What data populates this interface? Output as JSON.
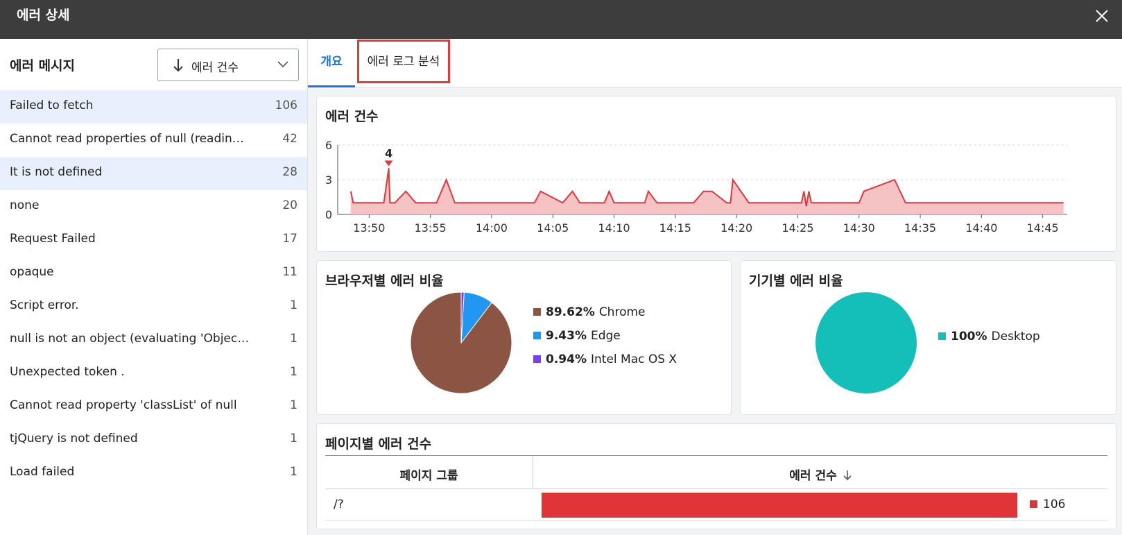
{
  "window": {
    "title": "에러 상세",
    "close_icon": "close-icon"
  },
  "left_panel": {
    "heading": "에러 메시지",
    "sort": {
      "label": "에러 건수",
      "icon": "arrow-down-icon"
    },
    "items": [
      {
        "text": "Failed to fetch",
        "count": "106",
        "selected": true
      },
      {
        "text": "Cannot read properties of null (readin…",
        "count": "42",
        "selected": false
      },
      {
        "text": "It is not defined",
        "count": "28",
        "selected": true
      },
      {
        "text": "none",
        "count": "20",
        "selected": false
      },
      {
        "text": "Request Failed",
        "count": "17",
        "selected": false
      },
      {
        "text": "opaque",
        "count": "11",
        "selected": false
      },
      {
        "text": "Script error.",
        "count": "1",
        "selected": false
      },
      {
        "text": "null is not an object (evaluating 'Objec…",
        "count": "1",
        "selected": false
      },
      {
        "text": "Unexpected token .",
        "count": "1",
        "selected": false
      },
      {
        "text": "Cannot read property 'classList' of null",
        "count": "1",
        "selected": false
      },
      {
        "text": "tjQuery is not defined",
        "count": "1",
        "selected": false
      },
      {
        "text": "Load failed",
        "count": "1",
        "selected": false
      }
    ]
  },
  "tabs": [
    {
      "label": "개요",
      "active": true
    },
    {
      "label": "에러 로그 분석",
      "active": false,
      "highlighted": true
    }
  ],
  "error_count_card": {
    "title": "에러 건수",
    "chart_data": {
      "type": "area",
      "x_ticks": [
        "13:50",
        "13:55",
        "14:00",
        "14:05",
        "14:10",
        "14:15",
        "14:20",
        "14:25",
        "14:30",
        "14:35",
        "14:40",
        "14:45"
      ],
      "y_ticks": [
        "0",
        "3",
        "6"
      ],
      "ylim": [
        0,
        6
      ],
      "xlim": [
        "13:48",
        "14:47"
      ],
      "peak_label": "4",
      "color": "#e0373c",
      "fill": "#f5c3c4",
      "points": [
        [
          "13:48.5",
          2
        ],
        [
          "13:48.7",
          1
        ],
        [
          "13:51.2",
          1
        ],
        [
          "13:51.6",
          4
        ],
        [
          "13:51.7",
          1
        ],
        [
          "13:52.1",
          1
        ],
        [
          "13:53.0",
          2
        ],
        [
          "13:53.8",
          1
        ],
        [
          "13:55.5",
          1
        ],
        [
          "13:56.3",
          3
        ],
        [
          "13:57.0",
          1
        ],
        [
          "14:03.5",
          1
        ],
        [
          "14:04.0",
          2
        ],
        [
          "14:05.8",
          1
        ],
        [
          "14:06.6",
          2
        ],
        [
          "14:07.2",
          1
        ],
        [
          "14:09.2",
          1
        ],
        [
          "14:09.6",
          2
        ],
        [
          "14:10.0",
          1
        ],
        [
          "14:12.5",
          1
        ],
        [
          "14:12.8",
          2
        ],
        [
          "14:13.5",
          1
        ],
        [
          "14:16.5",
          1
        ],
        [
          "14:17.3",
          2
        ],
        [
          "14:18.0",
          2
        ],
        [
          "14:19.2",
          1
        ],
        [
          "14:19.5",
          1
        ],
        [
          "14:19.7",
          3
        ],
        [
          "14:21.0",
          1
        ],
        [
          "14:25.3",
          1
        ],
        [
          "14:25.5",
          2
        ],
        [
          "14:25.7",
          0.7
        ],
        [
          "14:25.9",
          2
        ],
        [
          "14:26.1",
          1
        ],
        [
          "14:30.0",
          1
        ],
        [
          "14:30.4",
          2
        ],
        [
          "14:32.9",
          3
        ],
        [
          "14:33.8",
          1
        ],
        [
          "14:46.7",
          1
        ]
      ]
    }
  },
  "browser_card": {
    "title": "브라우저별 에러 비율",
    "chart_data": {
      "type": "pie",
      "slices": [
        {
          "label": "Chrome",
          "pct": "89.62%",
          "value": 89.62,
          "color": "#8c5443"
        },
        {
          "label": "Edge",
          "pct": "9.43%",
          "value": 9.43,
          "color": "#2196f3"
        },
        {
          "label": "Intel Mac OS X",
          "pct": "0.94%",
          "value": 0.94,
          "color": "#7b3ff2"
        }
      ]
    }
  },
  "device_card": {
    "title": "기기별 에러 비율",
    "chart_data": {
      "type": "pie",
      "slices": [
        {
          "label": "Desktop",
          "pct": "100%",
          "value": 100,
          "color": "#13bfb8"
        }
      ]
    }
  },
  "page_card": {
    "title": "페이지별 에러 건수",
    "col_group": "페이지 그룹",
    "col_count": "에러 건수",
    "rows": [
      {
        "page": "/?",
        "count": "106",
        "value": 106,
        "max": 106
      }
    ],
    "bar_color": "#e03538"
  }
}
